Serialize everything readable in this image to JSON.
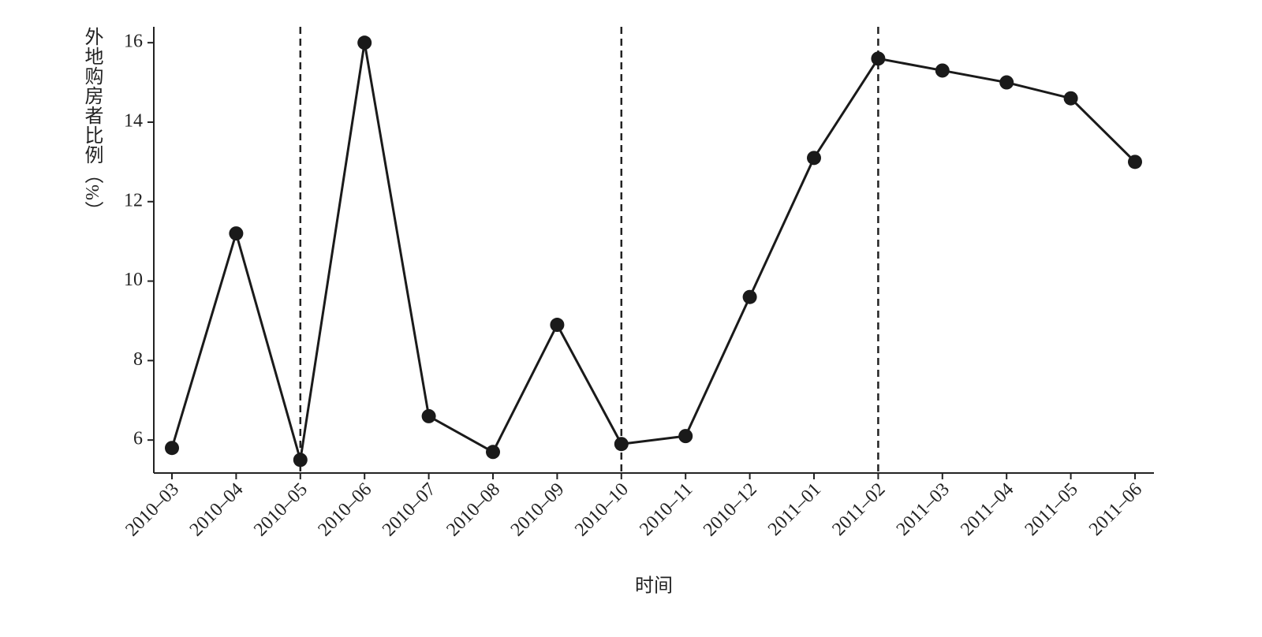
{
  "chart_data": {
    "type": "line",
    "x_label": "时间",
    "y_label": "外地购房者比例（%）",
    "categories": [
      "2010–03",
      "2010–04",
      "2010–05",
      "2010–06",
      "2010–07",
      "2010–08",
      "2010–09",
      "2010–10",
      "2010–11",
      "2010–12",
      "2011–01",
      "2011–02",
      "2011–03",
      "2011–04",
      "2011–05",
      "2011–06"
    ],
    "values": [
      5.8,
      11.2,
      5.5,
      16,
      6.6,
      5.7,
      8.9,
      5.9,
      6.1,
      9.6,
      13.1,
      15.6,
      15.3,
      15.0,
      14.6,
      13.0
    ],
    "color": "#1a1a1a",
    "ylim": [
      5.17,
      16.4
    ],
    "yticks": [
      6,
      8,
      10,
      12,
      14,
      16
    ],
    "reference_lines": [
      "2010–05",
      "2010–10",
      "2011–02"
    ],
    "grid": false
  }
}
